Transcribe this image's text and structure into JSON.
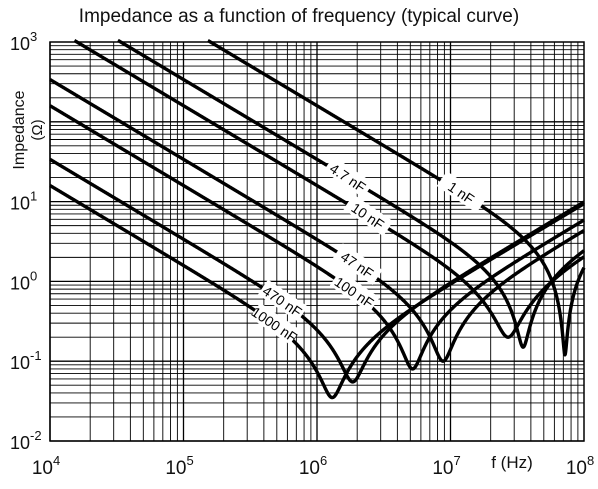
{
  "chart_data": {
    "type": "line",
    "title": "Impedance as a function of frequency (typical curve)",
    "xlabel": "f (Hz)",
    "ylabel": "Impedance",
    "ylabel_unit": "(Ω)",
    "x_scale": "log",
    "y_scale": "log",
    "xlim": [
      10000,
      100000000
    ],
    "ylim": [
      0.01,
      1000
    ],
    "grid": true,
    "x_ticks": [
      {
        "value": 10000,
        "base": "10",
        "exp": "4"
      },
      {
        "value": 100000,
        "base": "10",
        "exp": "5"
      },
      {
        "value": 1000000,
        "base": "10",
        "exp": "6"
      },
      {
        "value": 10000000,
        "base": "10",
        "exp": "7"
      },
      {
        "value": 100000000,
        "base": "10",
        "exp": "8"
      }
    ],
    "y_ticks": [
      {
        "value": 0.01,
        "base": "10",
        "exp": "-2"
      },
      {
        "value": 0.1,
        "base": "10",
        "exp": "-1"
      },
      {
        "value": 1,
        "base": "10",
        "exp": "0"
      },
      {
        "value": 10,
        "base": "10",
        "exp": "1"
      },
      {
        "value": 1000,
        "base": "10",
        "exp": "3"
      }
    ],
    "series": [
      {
        "name": "1 nF",
        "capacitance_f": 1e-09,
        "resonance_hz": 72000000,
        "min_ohm": 0.12,
        "hf_asymptote_ohm_at_1e8": 5
      },
      {
        "name": "4.7 nF",
        "capacitance_f": 4.7e-09,
        "resonance_hz": 35000000,
        "min_ohm": 0.15,
        "hf_asymptote_ohm_at_1e8": 9
      },
      {
        "name": "10 nF",
        "capacitance_f": 1e-08,
        "resonance_hz": 27000000,
        "min_ohm": 0.2,
        "hf_asymptote_ohm_at_1e8": 11
      },
      {
        "name": "47 nF",
        "capacitance_f": 4.7e-08,
        "resonance_hz": 8800000,
        "min_ohm": 0.1,
        "hf_asymptote_ohm_at_1e8": 12
      },
      {
        "name": "100 nF",
        "capacitance_f": 1e-07,
        "resonance_hz": 5200000,
        "min_ohm": 0.08,
        "hf_asymptote_ohm_at_1e8": 13
      },
      {
        "name": "470 nF",
        "capacitance_f": 4.7e-07,
        "resonance_hz": 1850000,
        "min_ohm": 0.055,
        "hf_asymptote_ohm_at_1e8": 12
      },
      {
        "name": "1000 nF",
        "capacitance_f": 1e-06,
        "resonance_hz": 1300000,
        "min_ohm": 0.035,
        "hf_asymptote_ohm_at_1e8": 13
      }
    ]
  }
}
